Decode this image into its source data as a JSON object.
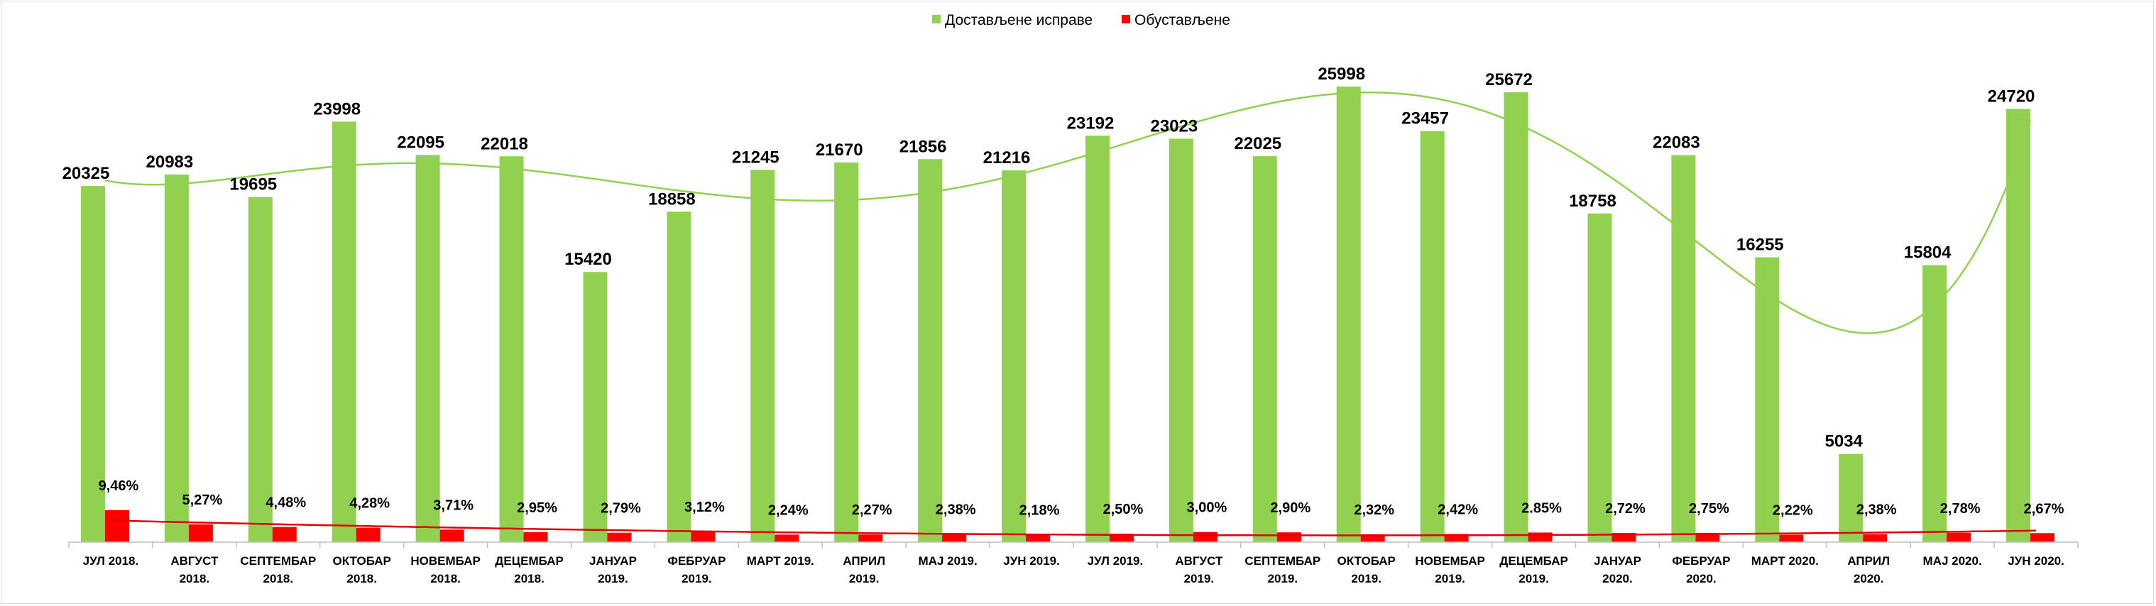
{
  "chart_data": {
    "type": "bar",
    "title": "",
    "xlabel": "",
    "ylabel": "",
    "legend_position": "top-center",
    "grid": false,
    "categories": [
      [
        "ЈУЛ 2018."
      ],
      [
        "АВГУСТ",
        "2018."
      ],
      [
        "СЕПТЕМБАР",
        "2018."
      ],
      [
        "ОКТОБАР",
        "2018."
      ],
      [
        "НОВЕМБАР",
        "2018."
      ],
      [
        "ДЕЦЕМБАР",
        "2018."
      ],
      [
        "ЈАНУАР",
        "2019."
      ],
      [
        "ФЕБРУАР",
        "2019."
      ],
      [
        "МАРТ 2019."
      ],
      [
        "АПРИЛ",
        "2019."
      ],
      [
        "МАЈ 2019."
      ],
      [
        "ЈУН 2019."
      ],
      [
        "ЈУЛ 2019."
      ],
      [
        "АВГУСТ",
        "2019."
      ],
      [
        "СЕПТЕМБАР",
        "2019."
      ],
      [
        "ОКТОБАР",
        "2019."
      ],
      [
        "НОВЕМБАР",
        "2019."
      ],
      [
        "ДЕЦЕМБАР",
        "2019."
      ],
      [
        "ЈАНУАР",
        "2020."
      ],
      [
        "ФЕБРУАР",
        "2020."
      ],
      [
        "МАРТ 2020."
      ],
      [
        "АПРИЛ",
        "2020."
      ],
      [
        "МАЈ 2020."
      ],
      [
        "ЈУН 2020."
      ]
    ],
    "series": [
      {
        "name": "Достављене исправе",
        "color": "#92d050",
        "values": [
          20325,
          20983,
          19695,
          23998,
          22095,
          22018,
          15420,
          18858,
          21245,
          21670,
          21856,
          21216,
          23192,
          23023,
          22025,
          25998,
          23457,
          25672,
          18758,
          22083,
          16255,
          5034,
          15804,
          24720
        ],
        "labels": [
          "20325",
          "20983",
          "19695",
          "23998",
          "22095",
          "22018",
          "15420",
          "18858",
          "21245",
          "21670",
          "21856",
          "21216",
          "23192",
          "23023",
          "22025",
          "25998",
          "23457",
          "25672",
          "18758",
          "22083",
          "16255",
          "5034",
          "15804",
          "24720"
        ]
      },
      {
        "name": "Обустављене",
        "color": "#ff0000",
        "values": [
          9.46,
          5.27,
          4.48,
          4.28,
          3.71,
          2.95,
          2.79,
          3.12,
          2.24,
          2.27,
          2.38,
          2.18,
          2.5,
          3.0,
          2.9,
          2.32,
          2.42,
          2.85,
          2.72,
          2.75,
          2.22,
          2.38,
          2.78,
          2.67
        ],
        "labels": [
          "9,46%",
          "5,27%",
          "4,48%",
          "4,28%",
          "3,71%",
          "2,95%",
          "2,79%",
          "3,12%",
          "2,24%",
          "2,27%",
          "2,38%",
          "2,18%",
          "2,50%",
          "3,00%",
          "2,90%",
          "2,32%",
          "2,42%",
          "2.85%",
          "2,72%",
          "2,75%",
          "2,22%",
          "2,38%",
          "2,78%",
          "2,67%"
        ]
      }
    ],
    "trendlines": [
      {
        "series": "Достављене исправе",
        "color": "#92d050",
        "kind": "polynomial"
      },
      {
        "series": "Обустављене",
        "color": "#e00000",
        "kind": "polynomial"
      }
    ]
  }
}
